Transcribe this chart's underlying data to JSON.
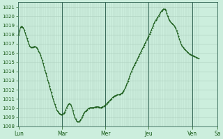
{
  "background_color": "#cceedd",
  "plot_bg_color": "#cceedd",
  "line_color": "#1a5c1a",
  "marker_color": "#1a5c1a",
  "grid_color_minor": "#aaccbb",
  "grid_color_major": "#88bbaa",
  "tick_label_color": "#1a5c1a",
  "ylim": [
    1008,
    1021.5
  ],
  "yticks": [
    1008,
    1009,
    1010,
    1011,
    1012,
    1013,
    1014,
    1015,
    1016,
    1017,
    1018,
    1019,
    1020,
    1021
  ],
  "xtick_labels": [
    "Lun",
    "Mar",
    "Mer",
    "Jeu",
    "Ven",
    "Sa"
  ],
  "xtick_positions": [
    0,
    48,
    96,
    144,
    192,
    220
  ],
  "total_points": 240,
  "pressure_data": [
    1018.0,
    1018.4,
    1018.8,
    1018.9,
    1018.85,
    1018.7,
    1018.5,
    1018.2,
    1017.9,
    1017.6,
    1017.3,
    1017.0,
    1016.8,
    1016.65,
    1016.6,
    1016.6,
    1016.65,
    1016.7,
    1016.7,
    1016.65,
    1016.55,
    1016.4,
    1016.2,
    1016.0,
    1015.8,
    1015.5,
    1015.2,
    1014.85,
    1014.5,
    1014.15,
    1013.8,
    1013.45,
    1013.1,
    1012.75,
    1012.4,
    1012.05,
    1011.7,
    1011.35,
    1011.0,
    1010.7,
    1010.4,
    1010.1,
    1009.85,
    1009.65,
    1009.5,
    1009.4,
    1009.35,
    1009.3,
    1009.3,
    1009.35,
    1009.45,
    1009.6,
    1009.8,
    1010.05,
    1010.25,
    1010.4,
    1010.5,
    1010.45,
    1010.3,
    1010.05,
    1009.7,
    1009.3,
    1009.0,
    1008.8,
    1008.6,
    1008.5,
    1008.5,
    1008.55,
    1008.65,
    1008.8,
    1009.0,
    1009.2,
    1009.4,
    1009.55,
    1009.65,
    1009.75,
    1009.85,
    1009.95,
    1010.0,
    1010.05,
    1010.05,
    1010.05,
    1010.05,
    1010.05,
    1010.1,
    1010.1,
    1010.15,
    1010.15,
    1010.15,
    1010.1,
    1010.05,
    1010.05,
    1010.1,
    1010.15,
    1010.2,
    1010.25,
    1010.35,
    1010.45,
    1010.55,
    1010.65,
    1010.75,
    1010.85,
    1010.95,
    1011.05,
    1011.15,
    1011.25,
    1011.3,
    1011.35,
    1011.4,
    1011.45,
    1011.45,
    1011.45,
    1011.5,
    1011.55,
    1011.6,
    1011.7,
    1011.85,
    1012.0,
    1012.2,
    1012.45,
    1012.7,
    1012.95,
    1013.2,
    1013.5,
    1013.75,
    1014.0,
    1014.25,
    1014.45,
    1014.65,
    1014.85,
    1015.05,
    1015.25,
    1015.45,
    1015.65,
    1015.85,
    1016.05,
    1016.25,
    1016.45,
    1016.65,
    1016.85,
    1017.05,
    1017.25,
    1017.45,
    1017.65,
    1017.85,
    1018.05,
    1018.25,
    1018.5,
    1018.75,
    1019.0,
    1019.25,
    1019.45,
    1019.6,
    1019.75,
    1019.9,
    1020.05,
    1020.2,
    1020.4,
    1020.55,
    1020.65,
    1020.75,
    1020.8,
    1020.75,
    1020.6,
    1020.3,
    1020.0,
    1019.75,
    1019.55,
    1019.4,
    1019.3,
    1019.2,
    1019.1,
    1019.0,
    1018.85,
    1018.65,
    1018.4,
    1018.1,
    1017.8,
    1017.5,
    1017.2,
    1016.95,
    1016.75,
    1016.6,
    1016.5,
    1016.4,
    1016.3,
    1016.2,
    1016.1,
    1016.0,
    1015.9,
    1015.85,
    1015.8,
    1015.75,
    1015.7,
    1015.65,
    1015.6,
    1015.55,
    1015.5,
    1015.45,
    1015.4
  ]
}
